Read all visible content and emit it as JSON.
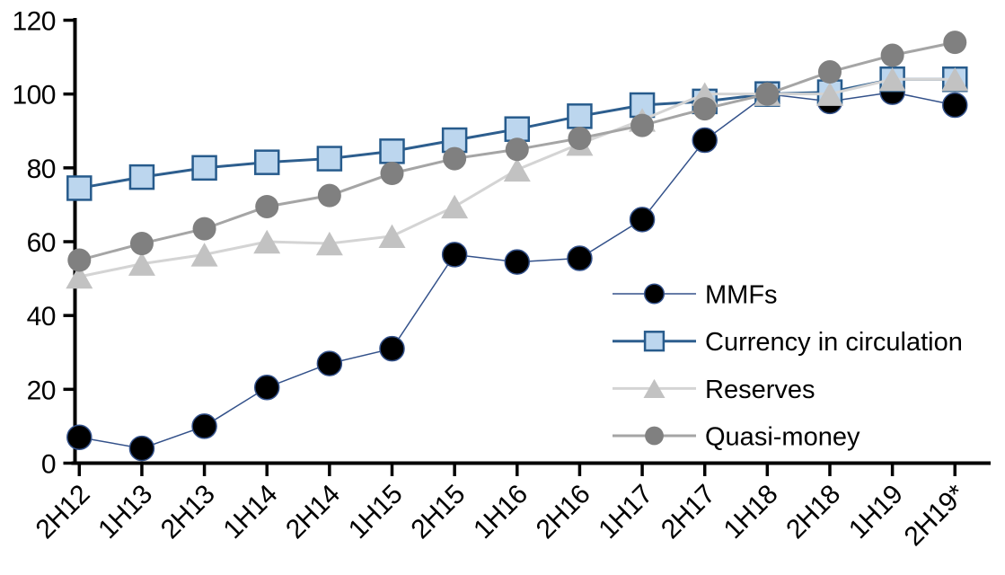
{
  "chart_data": {
    "type": "line",
    "title": "",
    "xlabel": "",
    "ylabel": "",
    "grid": "off",
    "background": "#FFFFFF",
    "axis_color": "#000000",
    "categories": [
      "2H12",
      "1H13",
      "2H13",
      "1H14",
      "2H14",
      "1H15",
      "2H15",
      "1H16",
      "2H16",
      "1H17",
      "2H17",
      "1H18",
      "2H18",
      "1H19",
      "2H19*"
    ],
    "y_axis": {
      "min": 0,
      "max": 120,
      "step": 20,
      "tick_labels": [
        "0",
        "20",
        "40",
        "60",
        "80",
        "100",
        "120"
      ]
    },
    "series": [
      {
        "name": "MMFs",
        "marker": "circle",
        "marker_size": 27,
        "marker_fill": "#000000",
        "marker_stroke": "#33518A",
        "marker_stroke_width": 1.5,
        "line_color": "#33518A",
        "line_width": 1.5,
        "values": [
          7,
          4,
          10,
          20.5,
          27,
          31,
          56.5,
          54.5,
          55.5,
          66,
          87.5,
          100,
          98,
          100.5,
          97
        ]
      },
      {
        "name": "Currency in circulation",
        "marker": "square",
        "marker_size": 26,
        "marker_fill": "#BCD6EE",
        "marker_stroke": "#275B8C",
        "marker_stroke_width": 2.5,
        "line_color": "#2D5E8E",
        "line_width": 3,
        "values": [
          74.5,
          77.5,
          80,
          81.5,
          82.5,
          84.5,
          87.5,
          90.5,
          94,
          97,
          98,
          100,
          100.5,
          104,
          104
        ]
      },
      {
        "name": "Reserves",
        "marker": "triangle",
        "marker_size": 30,
        "marker_fill": "#C2C2C2",
        "marker_stroke": "#C2C2C2",
        "marker_stroke_width": 0,
        "line_color": "#D4D4D4",
        "line_width": 3,
        "values": [
          50.5,
          54,
          56.5,
          60,
          59.5,
          61.5,
          69.5,
          79.5,
          86.5,
          93,
          100,
          100,
          100,
          104,
          104
        ]
      },
      {
        "name": "Quasi-money",
        "marker": "circle",
        "marker_size": 26,
        "marker_fill": "#808080",
        "marker_stroke": "#808080",
        "marker_stroke_width": 0,
        "line_color": "#A5A5A5",
        "line_width": 3,
        "values": [
          55,
          59.5,
          63.5,
          69.5,
          72.5,
          78.5,
          82.5,
          85,
          88,
          91.5,
          96,
          100,
          106,
          110.5,
          114
        ]
      }
    ],
    "legend": {
      "position": "inside-right",
      "entries": [
        "MMFs",
        "Currency in circulation",
        "Reserves",
        "Quasi-money"
      ]
    }
  }
}
